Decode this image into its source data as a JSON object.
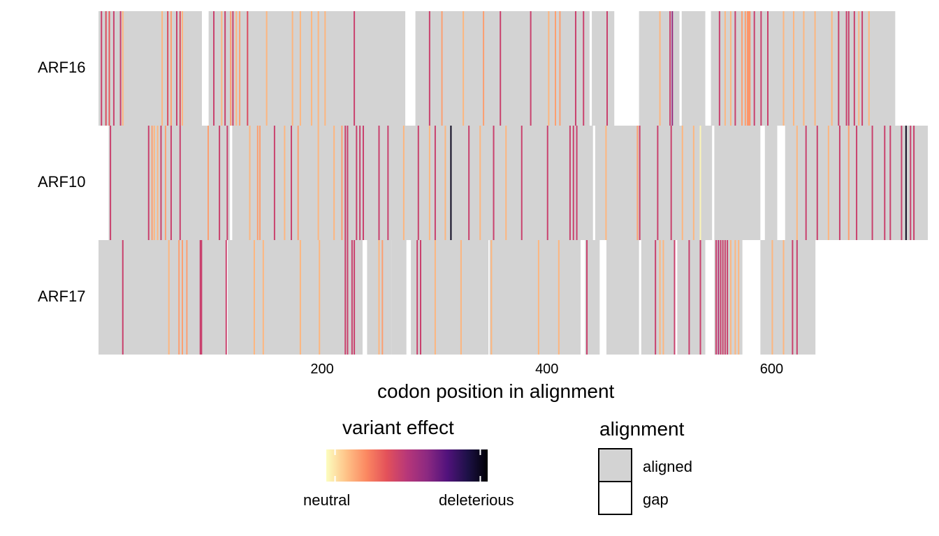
{
  "chart_data": {
    "type": "heatmap",
    "xlabel": "codon position in alignment",
    "x_ticks": [
      200,
      400,
      600
    ],
    "xlim": [
      1,
      738
    ],
    "rows": [
      {
        "label": "ARF16",
        "aligned_segments": [
          [
            1,
            92
          ],
          [
            99,
            273
          ],
          [
            283,
            437
          ],
          [
            440,
            459
          ],
          [
            482,
            517
          ],
          [
            520,
            540
          ],
          [
            546,
            709
          ]
        ],
        "variants": [
          {
            "pos": 3,
            "effect": 0.45
          },
          {
            "pos": 7,
            "effect": 0.4
          },
          {
            "pos": 10,
            "effect": 0.35
          },
          {
            "pos": 14,
            "effect": 0.45
          },
          {
            "pos": 20,
            "effect": 0.45
          },
          {
            "pos": 22,
            "effect": 0.15
          },
          {
            "pos": 57,
            "effect": 0.15
          },
          {
            "pos": 62,
            "effect": 0.4
          },
          {
            "pos": 65,
            "effect": 0.2
          },
          {
            "pos": 70,
            "effect": 0.45
          },
          {
            "pos": 73,
            "effect": 0.4
          },
          {
            "pos": 75,
            "effect": 0.15
          },
          {
            "pos": 103,
            "effect": 0.45
          },
          {
            "pos": 110,
            "effect": 0.15
          },
          {
            "pos": 113,
            "effect": 0.45
          },
          {
            "pos": 118,
            "effect": 0.2
          },
          {
            "pos": 120,
            "effect": 0.45
          },
          {
            "pos": 123,
            "effect": 0.15
          },
          {
            "pos": 126,
            "effect": 0.2
          },
          {
            "pos": 133,
            "effect": 0.4
          },
          {
            "pos": 150,
            "effect": 0.15
          },
          {
            "pos": 173,
            "effect": 0.15
          },
          {
            "pos": 180,
            "effect": 0.15
          },
          {
            "pos": 190,
            "effect": 0.15
          },
          {
            "pos": 196,
            "effect": 0.15
          },
          {
            "pos": 202,
            "effect": 0.15
          },
          {
            "pos": 228,
            "effect": 0.45
          },
          {
            "pos": 295,
            "effect": 0.45
          },
          {
            "pos": 306,
            "effect": 0.2
          },
          {
            "pos": 325,
            "effect": 0.15
          },
          {
            "pos": 343,
            "effect": 0.2
          },
          {
            "pos": 358,
            "effect": 0.45
          },
          {
            "pos": 385,
            "effect": 0.45
          },
          {
            "pos": 401,
            "effect": 0.15
          },
          {
            "pos": 407,
            "effect": 0.2
          },
          {
            "pos": 411,
            "effect": 0.2
          },
          {
            "pos": 425,
            "effect": 0.45
          },
          {
            "pos": 432,
            "effect": 0.45
          },
          {
            "pos": 453,
            "effect": 0.45
          },
          {
            "pos": 500,
            "effect": 0.15
          },
          {
            "pos": 509,
            "effect": 0.45
          },
          {
            "pos": 511,
            "effect": 0.6
          },
          {
            "pos": 553,
            "effect": 0.45
          },
          {
            "pos": 558,
            "effect": 0.15
          },
          {
            "pos": 563,
            "effect": 0.15
          },
          {
            "pos": 567,
            "effect": 0.45
          },
          {
            "pos": 573,
            "effect": 0.2
          },
          {
            "pos": 576,
            "effect": 0.2
          },
          {
            "pos": 578,
            "effect": 0.22
          },
          {
            "pos": 579,
            "effect": 0.22
          },
          {
            "pos": 580,
            "effect": 0.22
          },
          {
            "pos": 584,
            "effect": 0.45
          },
          {
            "pos": 590,
            "effect": 0.45
          },
          {
            "pos": 596,
            "effect": 0.45
          },
          {
            "pos": 610,
            "effect": 0.15
          },
          {
            "pos": 619,
            "effect": 0.15
          },
          {
            "pos": 628,
            "effect": 0.15
          },
          {
            "pos": 638,
            "effect": 0.15
          },
          {
            "pos": 653,
            "effect": 0.15
          },
          {
            "pos": 659,
            "effect": 0.45
          },
          {
            "pos": 666,
            "effect": 0.45
          },
          {
            "pos": 668,
            "effect": 0.45
          },
          {
            "pos": 673,
            "effect": 0.45
          },
          {
            "pos": 677,
            "effect": 0.15
          },
          {
            "pos": 680,
            "effect": 0.45
          },
          {
            "pos": 686,
            "effect": 0.15
          }
        ]
      },
      {
        "label": "ARF10",
        "aligned_segments": [
          [
            10,
            117
          ],
          [
            120,
            440
          ],
          [
            443,
            546
          ],
          [
            549,
            589
          ],
          [
            594,
            604
          ],
          [
            612,
            738
          ]
        ],
        "variants": [
          {
            "pos": 11,
            "effect": 0.45
          },
          {
            "pos": 45,
            "effect": 0.45
          },
          {
            "pos": 48,
            "effect": 0.2
          },
          {
            "pos": 50,
            "effect": 0.15
          },
          {
            "pos": 53,
            "effect": 0.15
          },
          {
            "pos": 56,
            "effect": 0.45
          },
          {
            "pos": 60,
            "effect": 0.2
          },
          {
            "pos": 65,
            "effect": 0.45
          },
          {
            "pos": 73,
            "effect": 0.45
          },
          {
            "pos": 98,
            "effect": 0.2
          },
          {
            "pos": 108,
            "effect": 0.45
          },
          {
            "pos": 115,
            "effect": 0.45
          },
          {
            "pos": 135,
            "effect": 0.15
          },
          {
            "pos": 142,
            "effect": 0.2
          },
          {
            "pos": 144,
            "effect": 0.2
          },
          {
            "pos": 157,
            "effect": 0.45
          },
          {
            "pos": 166,
            "effect": 0.15
          },
          {
            "pos": 172,
            "effect": 0.45
          },
          {
            "pos": 178,
            "effect": 0.2
          },
          {
            "pos": 196,
            "effect": 0.15
          },
          {
            "pos": 210,
            "effect": 0.15
          },
          {
            "pos": 217,
            "effect": 0.2
          },
          {
            "pos": 220,
            "effect": 0.45
          },
          {
            "pos": 222,
            "effect": 0.45
          },
          {
            "pos": 230,
            "effect": 0.45
          },
          {
            "pos": 233,
            "effect": 0.45
          },
          {
            "pos": 236,
            "effect": 0.45
          },
          {
            "pos": 250,
            "effect": 0.45
          },
          {
            "pos": 258,
            "effect": 0.45
          },
          {
            "pos": 272,
            "effect": 0.15
          },
          {
            "pos": 285,
            "effect": 0.45
          },
          {
            "pos": 295,
            "effect": 0.15
          },
          {
            "pos": 300,
            "effect": 0.45
          },
          {
            "pos": 309,
            "effect": 0.15
          },
          {
            "pos": 314,
            "effect": 0.95
          },
          {
            "pos": 330,
            "effect": 0.45
          },
          {
            "pos": 340,
            "effect": 0.15
          },
          {
            "pos": 352,
            "effect": 0.45
          },
          {
            "pos": 363,
            "effect": 0.15
          },
          {
            "pos": 377,
            "effect": 0.45
          },
          {
            "pos": 400,
            "effect": 0.45
          },
          {
            "pos": 420,
            "effect": 0.45
          },
          {
            "pos": 423,
            "effect": 0.45
          },
          {
            "pos": 426,
            "effect": 0.45
          },
          {
            "pos": 452,
            "effect": 0.15
          },
          {
            "pos": 480,
            "effect": 0.2
          },
          {
            "pos": 482,
            "effect": 0.45
          },
          {
            "pos": 498,
            "effect": 0.45
          },
          {
            "pos": 510,
            "effect": 0.45
          },
          {
            "pos": 520,
            "effect": 0.15
          },
          {
            "pos": 530,
            "effect": 0.15
          },
          {
            "pos": 536,
            "effect": 0.02
          },
          {
            "pos": 622,
            "effect": 0.15
          },
          {
            "pos": 630,
            "effect": 0.45
          },
          {
            "pos": 640,
            "effect": 0.45
          },
          {
            "pos": 650,
            "effect": 0.15
          },
          {
            "pos": 660,
            "effect": 0.45
          },
          {
            "pos": 668,
            "effect": 0.2
          },
          {
            "pos": 675,
            "effect": 0.45
          },
          {
            "pos": 689,
            "effect": 0.45
          },
          {
            "pos": 700,
            "effect": 0.45
          },
          {
            "pos": 705,
            "effect": 0.45
          },
          {
            "pos": 715,
            "effect": 0.45
          },
          {
            "pos": 719,
            "effect": 0.95
          },
          {
            "pos": 723,
            "effect": 0.45
          },
          {
            "pos": 726,
            "effect": 0.45
          }
        ]
      },
      {
        "label": "ARF17",
        "aligned_segments": [
          [
            1,
            113
          ],
          [
            116,
            235
          ],
          [
            240,
            261
          ],
          [
            262,
            274
          ],
          [
            279,
            347
          ],
          [
            349,
            429
          ],
          [
            434,
            446
          ],
          [
            453,
            481
          ],
          [
            484,
            512
          ],
          [
            516,
            540
          ],
          [
            549,
            573
          ],
          [
            590,
            638
          ]
        ],
        "variants": [
          {
            "pos": 22,
            "effect": 0.45
          },
          {
            "pos": 63,
            "effect": 0.15
          },
          {
            "pos": 72,
            "effect": 0.2
          },
          {
            "pos": 75,
            "effect": 0.2
          },
          {
            "pos": 79,
            "effect": 0.2
          },
          {
            "pos": 91,
            "effect": 0.45
          },
          {
            "pos": 92,
            "effect": 0.45
          },
          {
            "pos": 114,
            "effect": 0.45
          },
          {
            "pos": 139,
            "effect": 0.15
          },
          {
            "pos": 147,
            "effect": 0.15
          },
          {
            "pos": 180,
            "effect": 0.15
          },
          {
            "pos": 197,
            "effect": 0.15
          },
          {
            "pos": 220,
            "effect": 0.45
          },
          {
            "pos": 222,
            "effect": 0.45
          },
          {
            "pos": 226,
            "effect": 0.45
          },
          {
            "pos": 228,
            "effect": 0.45
          },
          {
            "pos": 250,
            "effect": 0.15
          },
          {
            "pos": 253,
            "effect": 0.2
          },
          {
            "pos": 284,
            "effect": 0.45
          },
          {
            "pos": 287,
            "effect": 0.45
          },
          {
            "pos": 300,
            "effect": 0.15
          },
          {
            "pos": 323,
            "effect": 0.15
          },
          {
            "pos": 350,
            "effect": 0.15
          },
          {
            "pos": 392,
            "effect": 0.15
          },
          {
            "pos": 410,
            "effect": 0.15
          },
          {
            "pos": 435,
            "effect": 0.45
          },
          {
            "pos": 496,
            "effect": 0.45
          },
          {
            "pos": 500,
            "effect": 0.15
          },
          {
            "pos": 503,
            "effect": 0.15
          },
          {
            "pos": 513,
            "effect": 0.45
          },
          {
            "pos": 526,
            "effect": 0.45
          },
          {
            "pos": 536,
            "effect": 0.45
          },
          {
            "pos": 550,
            "effect": 0.45
          },
          {
            "pos": 552,
            "effect": 0.5
          },
          {
            "pos": 554,
            "effect": 0.45
          },
          {
            "pos": 556,
            "effect": 0.45
          },
          {
            "pos": 558,
            "effect": 0.45
          },
          {
            "pos": 560,
            "effect": 0.45
          },
          {
            "pos": 563,
            "effect": 0.15
          },
          {
            "pos": 567,
            "effect": 0.15
          },
          {
            "pos": 570,
            "effect": 0.15
          },
          {
            "pos": 600,
            "effect": 0.15
          },
          {
            "pos": 610,
            "effect": 0.15
          },
          {
            "pos": 618,
            "effect": 0.45
          },
          {
            "pos": 622,
            "effect": 0.45
          }
        ]
      }
    ],
    "colors": {
      "aligned": "#d3d3d3",
      "gap": "#ffffff",
      "effect_scale": [
        "#fcfdbf",
        "#fec287",
        "#fb8761",
        "#e3515a",
        "#b73779",
        "#8c2981",
        "#51127c",
        "#1d1147",
        "#000004"
      ]
    },
    "legend": {
      "effect": {
        "title": "variant effect",
        "low_label": "neutral",
        "high_label": "deleterious"
      },
      "alignment": {
        "title": "alignment",
        "entries": [
          {
            "label": "aligned",
            "color": "#d3d3d3"
          },
          {
            "label": "gap",
            "color": "#ffffff"
          }
        ]
      }
    }
  }
}
